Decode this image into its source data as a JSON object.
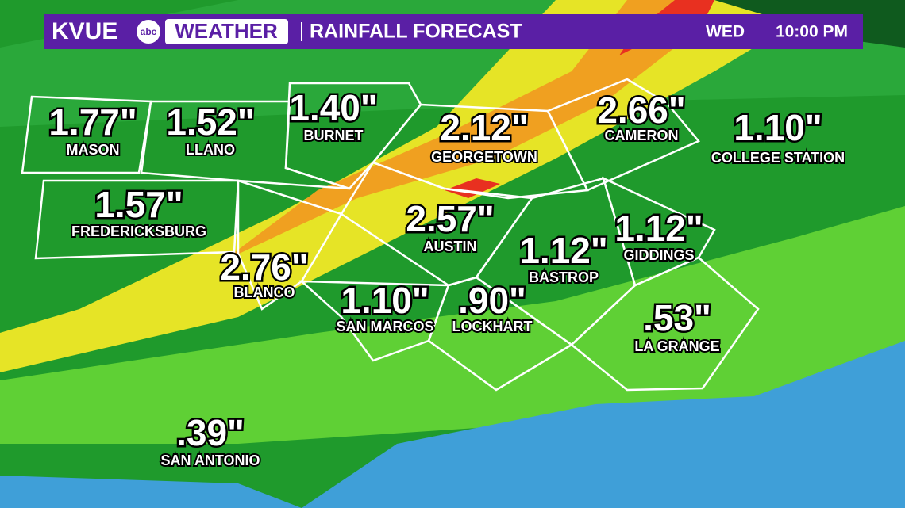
{
  "header": {
    "brand": "KVUE",
    "network": "abc",
    "segment": "WEATHER",
    "title": "RAINFALL FORECAST",
    "day": "WED",
    "time": "10:00 PM"
  },
  "locations": [
    {
      "amount": "1.77\"",
      "name": "MASON"
    },
    {
      "amount": "1.52\"",
      "name": "LLANO"
    },
    {
      "amount": "1.40\"",
      "name": "BURNET"
    },
    {
      "amount": "2.12\"",
      "name": "GEORGETOWN"
    },
    {
      "amount": "2.66\"",
      "name": "CAMERON"
    },
    {
      "amount": "1.10\"",
      "name": "COLLEGE STATION"
    },
    {
      "amount": "1.57\"",
      "name": "FREDERICKSBURG"
    },
    {
      "amount": "2.57\"",
      "name": "AUSTIN"
    },
    {
      "amount": "2.76\"",
      "name": "BLANCO"
    },
    {
      "amount": "1.12\"",
      "name": "BASTROP"
    },
    {
      "amount": "1.12\"",
      "name": "GIDDINGS"
    },
    {
      "amount": "1.10\"",
      "name": "SAN MARCOS"
    },
    {
      "amount": ".90\"",
      "name": "LOCKHART"
    },
    {
      "amount": ".53\"",
      "name": "LA GRANGE"
    },
    {
      "amount": ".39\"",
      "name": "SAN ANTONIO"
    }
  ]
}
